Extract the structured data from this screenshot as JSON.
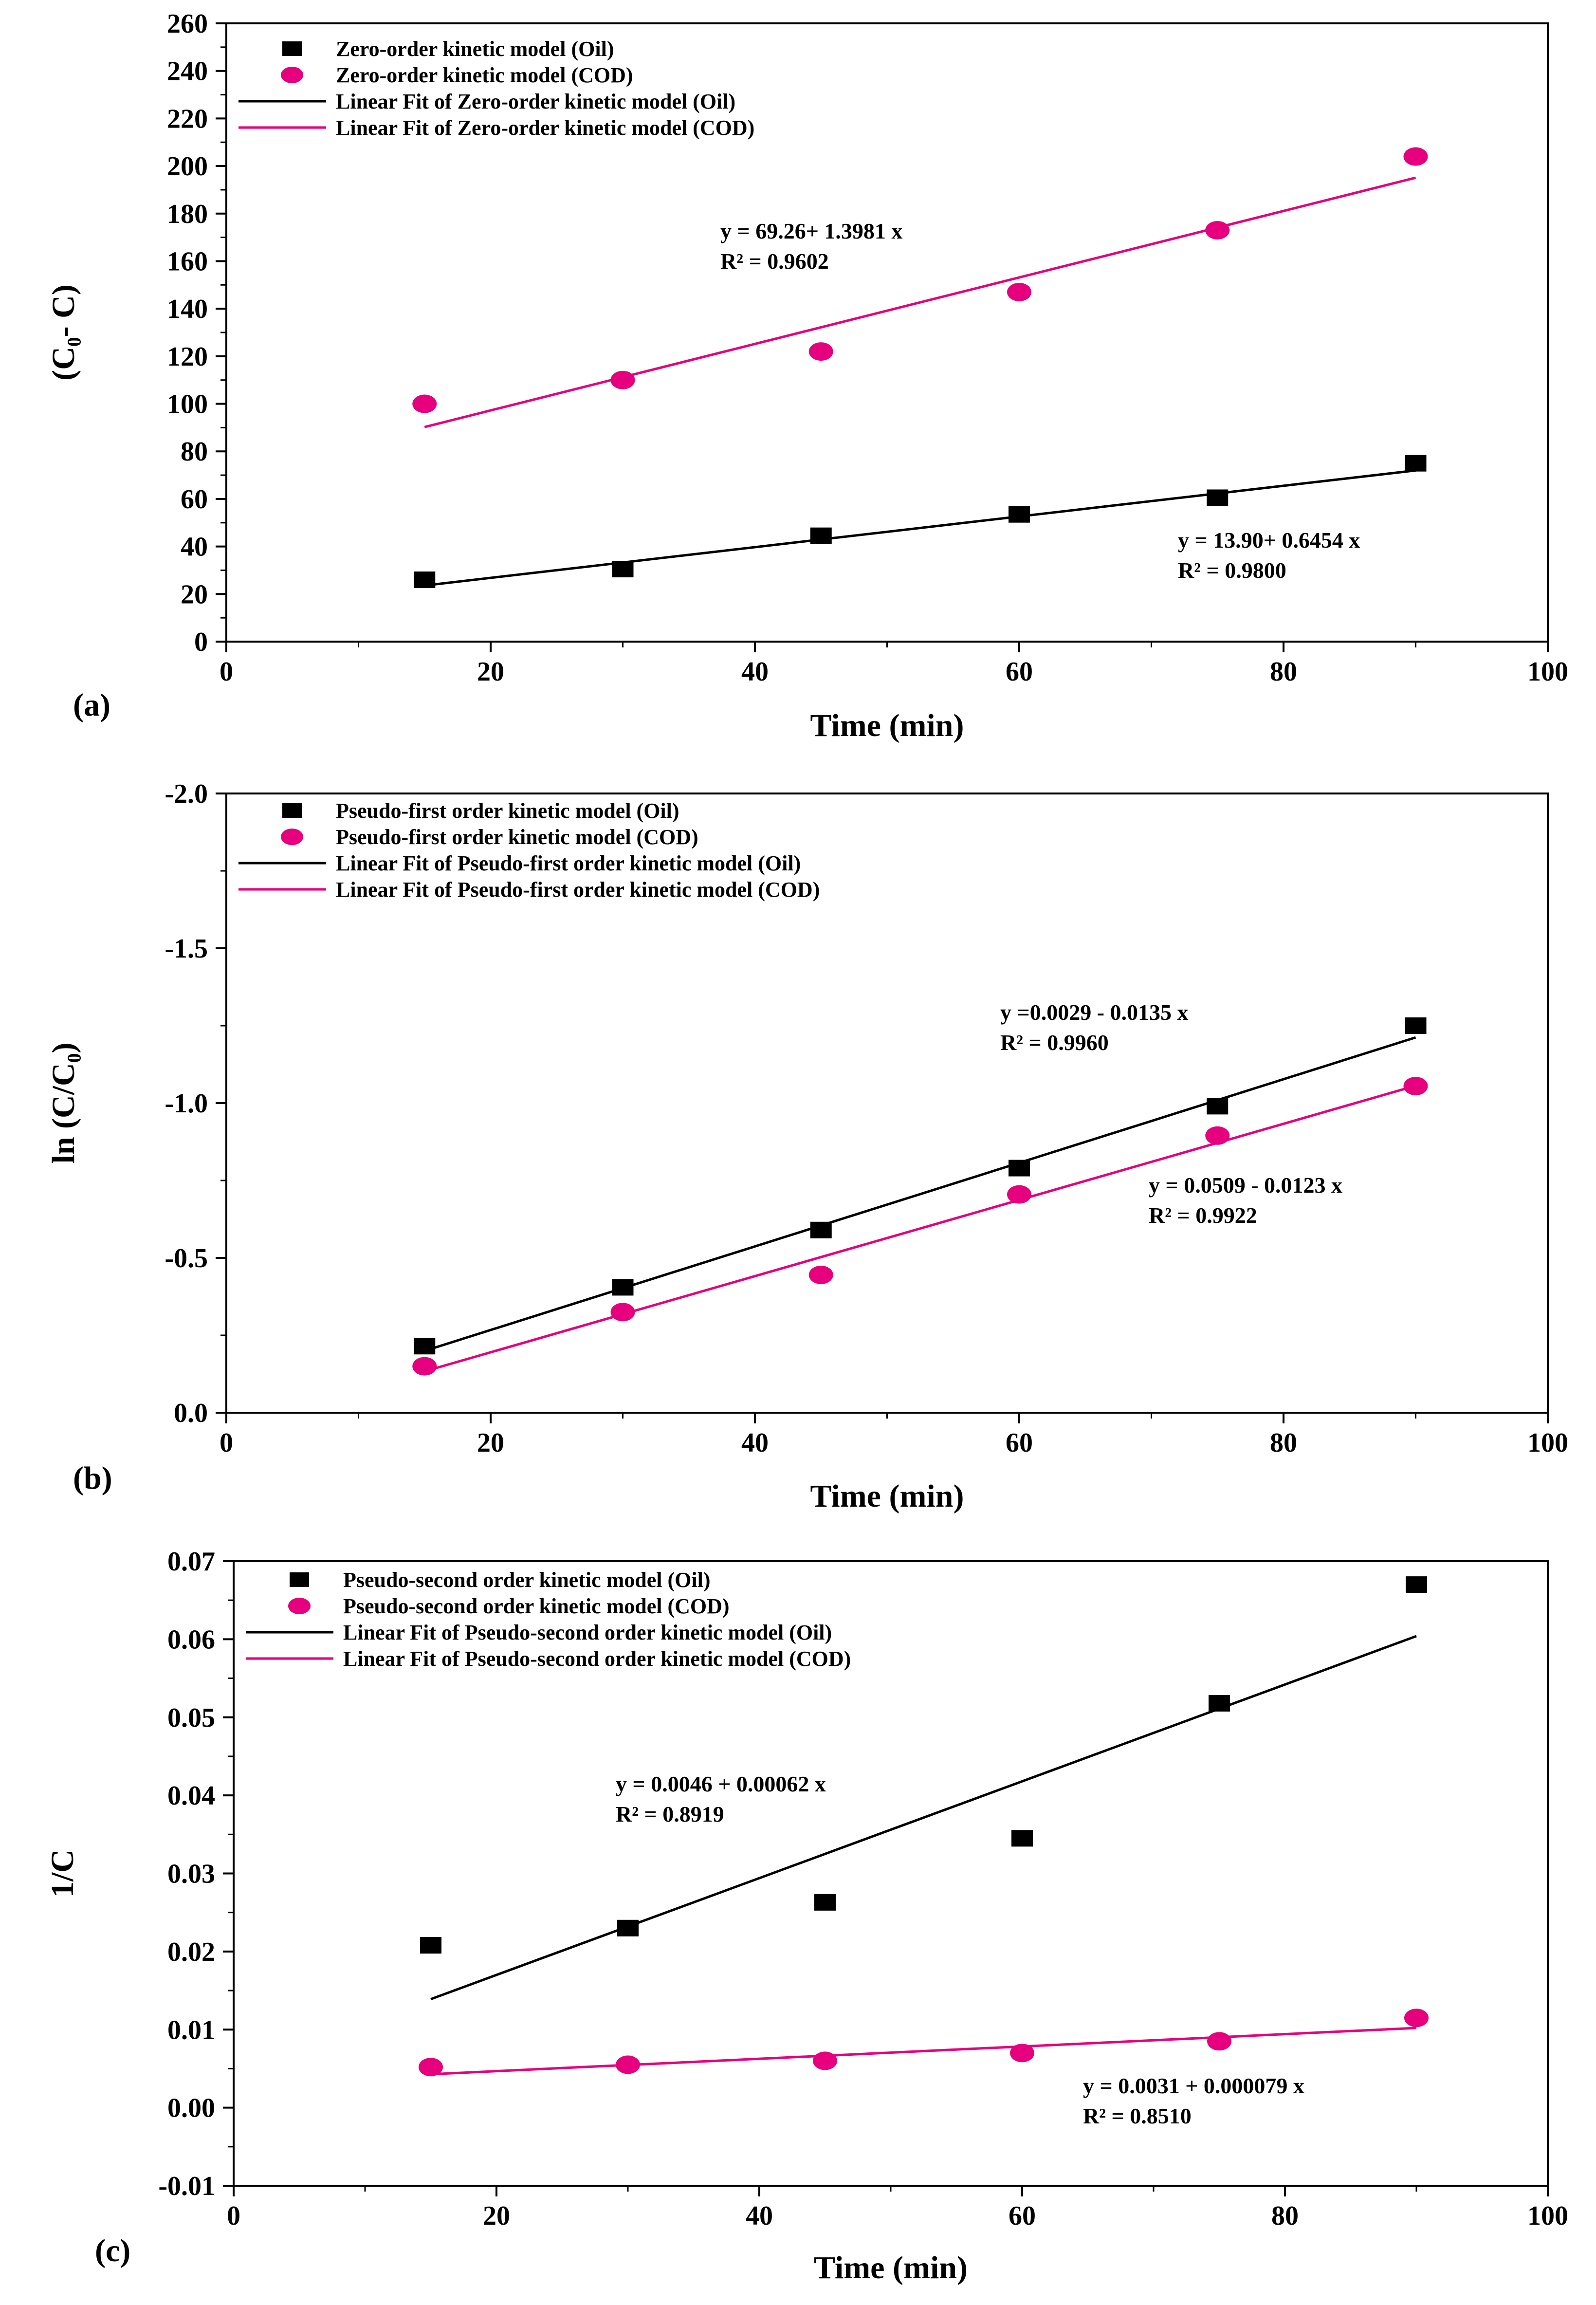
{
  "colors": {
    "oil": "#000000",
    "cod": "#e6007e",
    "axis": "#000000"
  },
  "chart_data": [
    {
      "type": "scatter",
      "panel_label": "(a)",
      "xlabel": "Time (min)",
      "ylabel": "(C₀- C)",
      "xlim": [
        0,
        100
      ],
      "ylim": [
        0,
        260
      ],
      "x_ticks": [
        0,
        20,
        40,
        60,
        80,
        100
      ],
      "y_ticks": [
        0,
        20,
        40,
        60,
        80,
        100,
        120,
        140,
        160,
        180,
        200,
        220,
        240,
        260
      ],
      "y_reversed": false,
      "legend_position": "top-left",
      "series": [
        {
          "name": "Zero-order kinetic model (Oil)",
          "marker": "square",
          "color": "#000000",
          "x": [
            15,
            30,
            45,
            60,
            75,
            90
          ],
          "y": [
            26,
            30.5,
            44.5,
            53.5,
            60.5,
            75
          ]
        },
        {
          "name": "Zero-order kinetic model (COD)",
          "marker": "circle",
          "color": "#e6007e",
          "x": [
            15,
            30,
            45,
            60,
            75,
            90
          ],
          "y": [
            100,
            110,
            122,
            147,
            173,
            204
          ]
        }
      ],
      "fits": [
        {
          "name": "Linear Fit of Zero-order kinetic model (Oil)",
          "color": "#000000",
          "intercept": 13.9,
          "slope": 0.6454,
          "x_range": [
            15,
            90
          ]
        },
        {
          "name": "Linear Fit of Zero-order kinetic model (COD)",
          "color": "#e6007e",
          "intercept": 69.26,
          "slope": 1.3981,
          "x_range": [
            15,
            90
          ]
        }
      ],
      "annotations": [
        {
          "line1": "y = 69.26+ 1.3981 x",
          "line2": "R² = 0.9602",
          "anchor": "center-upper"
        },
        {
          "line1": "y = 13.90+ 0.6454 x",
          "line2": "R² = 0.9800",
          "anchor": "right-lower"
        }
      ]
    },
    {
      "type": "scatter",
      "panel_label": "(b)",
      "xlabel": "Time (min)",
      "ylabel": "ln (C/C₀)",
      "xlim": [
        0,
        100
      ],
      "ylim": [
        0,
        -2.0
      ],
      "x_ticks": [
        0,
        20,
        40,
        60,
        80,
        100
      ],
      "y_ticks": [
        0.0,
        -0.5,
        -1.0,
        -1.5,
        -2.0
      ],
      "y_tick_labels": [
        "0.0",
        "-0.5",
        "-1.0",
        "-1.5",
        "-2.0"
      ],
      "y_reversed": true,
      "legend_position": "top-left",
      "series": [
        {
          "name": "Pseudo-first order kinetic model (Oil)",
          "marker": "square",
          "color": "#000000",
          "x": [
            15,
            30,
            45,
            60,
            75,
            90
          ],
          "y": [
            -0.215,
            -0.405,
            -0.59,
            -0.79,
            -0.99,
            -1.25
          ]
        },
        {
          "name": "Pseudo-first order kinetic model (COD)",
          "marker": "circle",
          "color": "#e6007e",
          "x": [
            15,
            30,
            45,
            60,
            75,
            90
          ],
          "y": [
            -0.15,
            -0.325,
            -0.445,
            -0.705,
            -0.895,
            -1.055
          ]
        }
      ],
      "fits": [
        {
          "name": "Linear Fit of Pseudo-first order kinetic model (Oil)",
          "color": "#000000",
          "intercept": 0.0029,
          "slope": -0.0135,
          "x_range": [
            15,
            90
          ]
        },
        {
          "name": "Linear Fit of Pseudo-first order kinetic model (COD)",
          "color": "#e6007e",
          "intercept": 0.0509,
          "slope": -0.0123,
          "x_range": [
            15,
            90
          ]
        }
      ],
      "annotations": [
        {
          "line1": "y =0.0029 - 0.0135 x",
          "line2": "R² = 0.9960",
          "anchor": "right-upper"
        },
        {
          "line1": "y = 0.0509 - 0.0123 x",
          "line2": "R² = 0.9922",
          "anchor": "right-middle"
        }
      ]
    },
    {
      "type": "scatter",
      "panel_label": "(c)",
      "xlabel": "Time (min)",
      "ylabel": "1/C",
      "xlim": [
        0,
        100
      ],
      "ylim": [
        -0.01,
        0.07
      ],
      "x_ticks": [
        0,
        20,
        40,
        60,
        80,
        100
      ],
      "y_ticks": [
        -0.01,
        0.0,
        0.01,
        0.02,
        0.03,
        0.04,
        0.05,
        0.06,
        0.07
      ],
      "y_tick_labels": [
        "-0.01",
        "0.00",
        "0.01",
        "0.02",
        "0.03",
        "0.04",
        "0.05",
        "0.06",
        "0.07"
      ],
      "y_reversed": false,
      "legend_position": "top-left",
      "series": [
        {
          "name": "Pseudo-second order kinetic model (Oil)",
          "marker": "square",
          "color": "#000000",
          "x": [
            15,
            30,
            45,
            60,
            75,
            90
          ],
          "y": [
            0.0208,
            0.023,
            0.0263,
            0.0345,
            0.0518,
            0.067
          ]
        },
        {
          "name": "Pseudo-second order kinetic model (COD)",
          "marker": "circle",
          "color": "#e6007e",
          "x": [
            15,
            30,
            45,
            60,
            75,
            90
          ],
          "y": [
            0.0052,
            0.0055,
            0.006,
            0.007,
            0.0085,
            0.0115
          ]
        }
      ],
      "fits": [
        {
          "name": "Linear Fit of Pseudo-second order kinetic model (Oil)",
          "color": "#000000",
          "intercept": 0.0046,
          "slope": 0.00062,
          "x_range": [
            15,
            90
          ]
        },
        {
          "name": "Linear Fit of Pseudo-second order kinetic model (COD)",
          "color": "#e6007e",
          "intercept": 0.0031,
          "slope": 7.9e-05,
          "x_range": [
            15,
            90
          ]
        }
      ],
      "annotations": [
        {
          "line1": "y =  0.0046 + 0.00062 x",
          "line2": "R² = 0.8919",
          "anchor": "center-middle"
        },
        {
          "line1": "y =   0.0031 + 0.000079 x",
          "line2": "R² = 0.8510",
          "anchor": "right-lower"
        }
      ]
    }
  ]
}
